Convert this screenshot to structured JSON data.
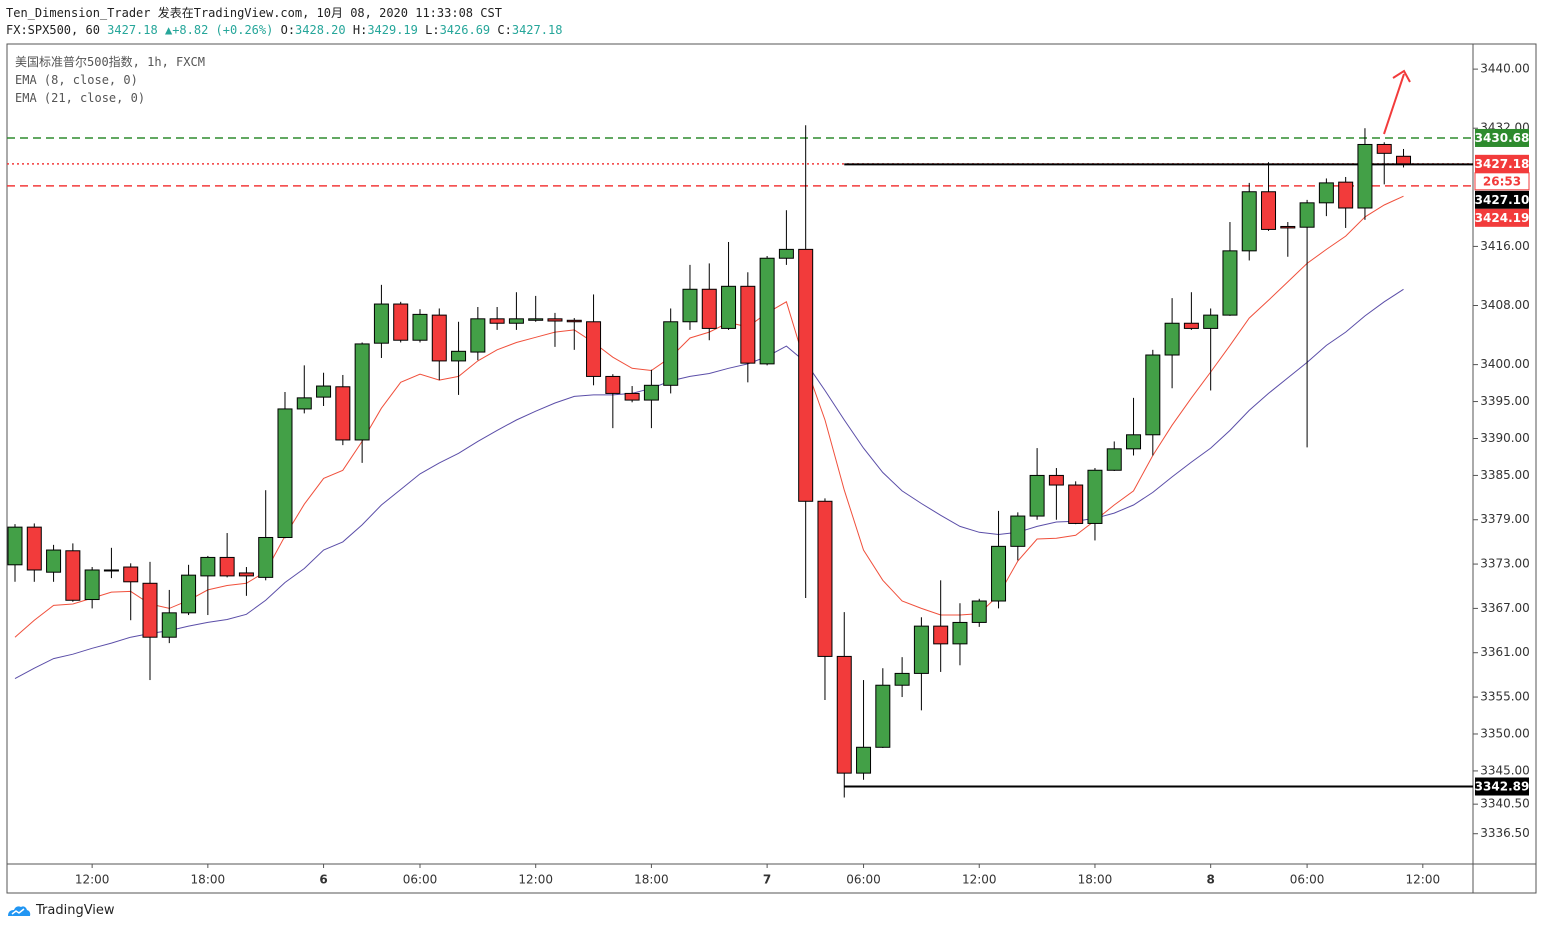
{
  "chart_data": {
    "type": "candlestick",
    "title": "Ten_Dimension_Trader 发表在TradingView.com, 10月 08, 2020 11:33:08 CST",
    "header": {
      "symbol": "FX:SPX500, 60",
      "last": "3427.18",
      "arrow": "▲",
      "change": "+8.82 (+0.26%)",
      "ohlc": [
        {
          "key": "O:",
          "value": "3428.20"
        },
        {
          "key": "H:",
          "value": "3429.19"
        },
        {
          "key": "L:",
          "value": "3426.69"
        },
        {
          "key": "C:",
          "value": "3427.18"
        }
      ]
    },
    "subtitle": "美国标准普尔500指数, 1h, FXCM",
    "categories": [
      null,
      null,
      null,
      null,
      "12:00",
      null,
      null,
      null,
      null,
      null,
      "18:00",
      null,
      null,
      null,
      null,
      null,
      "6",
      null,
      null,
      null,
      null,
      "06:00",
      null,
      null,
      null,
      null,
      null,
      "12:00",
      null,
      null,
      null,
      null,
      null,
      "18:00",
      null,
      null,
      null,
      null,
      null,
      "7",
      null,
      null,
      null,
      null,
      "06:00",
      null,
      null,
      null,
      null,
      null,
      "12:00",
      null,
      null,
      null,
      null,
      null,
      "18:00",
      null,
      null,
      null,
      null,
      null,
      "8",
      null,
      null,
      null,
      null,
      "06:00",
      null,
      null,
      null,
      null,
      null,
      "12:00"
    ],
    "open": [
      3372.9,
      3378.0,
      3371.9,
      3374.8,
      3368.2,
      3372.1,
      3372.6,
      3370.4,
      3363.1,
      3366.4,
      3371.4,
      3373.9,
      3371.8,
      3371.2,
      3376.6,
      3394.0,
      3395.6,
      3397.0,
      3389.8,
      3402.9,
      3408.2,
      3403.3,
      3406.7,
      3400.5,
      3401.7,
      3406.2,
      3405.6,
      3406.0,
      3406.2,
      3406.0,
      3405.8,
      3398.4,
      3396.1,
      3395.2,
      3397.2,
      3405.8,
      3410.2,
      3404.9,
      3410.6,
      3400.1,
      3414.4,
      3415.6,
      3381.5,
      3360.5,
      3344.7,
      3348.2,
      3356.6,
      3358.2,
      3364.6,
      3362.2,
      3365.1,
      3368.0,
      3375.4,
      3379.5,
      3385.0,
      3383.7,
      3378.5,
      3385.7,
      3388.6,
      3390.5,
      3401.3,
      3405.6,
      3404.9,
      3406.7,
      3415.4,
      3423.4,
      3418.7,
      3418.6,
      3421.9,
      3424.7,
      3421.2,
      3429.8,
      3428.2,
      null
    ],
    "high": [
      3378.4,
      3378.5,
      3375.6,
      3375.8,
      3372.6,
      3375.2,
      3373.1,
      3373.3,
      3369.5,
      3372.9,
      3374.1,
      3377.2,
      3372.6,
      3383.0,
      3396.3,
      3399.9,
      3398.9,
      3398.6,
      3403.0,
      3410.8,
      3408.5,
      3407.5,
      3407.6,
      3405.8,
      3407.8,
      3407.8,
      3409.8,
      3409.3,
      3407.0,
      3406.3,
      3409.5,
      3398.7,
      3397.1,
      3399.3,
      3407.6,
      3413.5,
      3413.7,
      3416.6,
      3412.5,
      3414.7,
      3420.9,
      3432.4,
      3381.9,
      3366.5,
      3357.3,
      3358.9,
      3360.4,
      3365.8,
      3370.8,
      3367.7,
      3368.3,
      3380.2,
      3380.0,
      3388.7,
      3386.0,
      3384.2,
      3386.0,
      3389.6,
      3395.5,
      3402.0,
      3409.0,
      3409.8,
      3407.6,
      3419.3,
      3424.6,
      3427.4,
      3419.3,
      3422.3,
      3425.2,
      3425.4,
      3432.0,
      3430.1,
      3429.19,
      null
    ],
    "low": [
      3370.6,
      3370.6,
      3370.6,
      3367.9,
      3367.0,
      3371.1,
      3365.4,
      3357.3,
      3362.3,
      3366.1,
      3366.1,
      3371.2,
      3368.7,
      3370.8,
      3376.5,
      3393.4,
      3394.4,
      3389.1,
      3386.7,
      3400.9,
      3403.0,
      3403.0,
      3397.9,
      3395.9,
      3400.6,
      3404.7,
      3404.7,
      3405.8,
      3402.4,
      3402.0,
      3397.2,
      3391.4,
      3394.9,
      3391.4,
      3396.1,
      3404.7,
      3403.3,
      3404.7,
      3397.6,
      3399.9,
      3413.5,
      3368.4,
      3354.6,
      3341.4,
      3343.8,
      3348.1,
      3355.0,
      3353.2,
      3358.4,
      3359.3,
      3364.5,
      3367.0,
      3373.5,
      3379.0,
      3379.0,
      3378.4,
      3376.2,
      3385.6,
      3387.7,
      3387.7,
      3396.8,
      3404.7,
      3396.5,
      3406.6,
      3414.1,
      3418.1,
      3414.6,
      3388.8,
      3420.1,
      3418.5,
      3419.6,
      3424.4,
      3426.69,
      null
    ],
    "close": [
      3378.0,
      3372.2,
      3374.9,
      3368.1,
      3372.2,
      3372.2,
      3370.6,
      3363.1,
      3366.4,
      3371.5,
      3373.9,
      3371.4,
      3371.4,
      3376.6,
      3394.0,
      3395.5,
      3397.1,
      3389.8,
      3402.8,
      3408.2,
      3403.3,
      3406.8,
      3400.5,
      3401.8,
      3406.2,
      3405.6,
      3406.2,
      3406.2,
      3405.9,
      3405.8,
      3398.4,
      3396.1,
      3395.2,
      3397.2,
      3405.8,
      3410.2,
      3404.9,
      3410.6,
      3400.2,
      3414.4,
      3415.6,
      3381.5,
      3360.5,
      3344.7,
      3348.2,
      3356.6,
      3358.2,
      3364.6,
      3362.2,
      3365.1,
      3368.0,
      3375.4,
      3379.5,
      3385.0,
      3383.7,
      3378.5,
      3385.7,
      3388.6,
      3390.5,
      3401.3,
      3405.6,
      3404.9,
      3406.7,
      3415.4,
      3423.4,
      3418.3,
      3418.5,
      3421.9,
      3424.6,
      3421.2,
      3429.8,
      3428.6,
      3427.18,
      null
    ],
    "up_color": "#43a047",
    "down_color": "#f23b3b",
    "series": [
      {
        "name": "EMA (8, close, 0)",
        "color": "#f0503c",
        "values": [
          3363.1,
          3365.4,
          3367.4,
          3367.6,
          3368.4,
          3369.2,
          3369.3,
          3367.6,
          3367.0,
          3368.1,
          3369.5,
          3370.1,
          3370.4,
          3372.0,
          3376.8,
          3381.1,
          3384.6,
          3385.7,
          3389.6,
          3394.1,
          3397.6,
          3398.7,
          3397.9,
          3398.4,
          3400.5,
          3402.0,
          3403.0,
          3403.7,
          3404.4,
          3404.7,
          3403.0,
          3401.0,
          3399.5,
          3399.2,
          3401.0,
          3403.6,
          3404.4,
          3405.7,
          3405.1,
          3407.0,
          3408.5,
          3399.9,
          3392.5,
          3383.0,
          3374.9,
          3370.8,
          3368.0,
          3367.0,
          3366.1,
          3366.1,
          3366.3,
          3368.8,
          3373.4,
          3376.4,
          3376.5,
          3376.9,
          3378.9,
          3381.0,
          3382.9,
          3387.7,
          3391.8,
          3395.5,
          3399.0,
          3402.6,
          3406.3,
          3408.7,
          3411.2,
          3413.7,
          3415.6,
          3417.4,
          3420.0,
          3421.6,
          3422.8,
          null
        ]
      },
      {
        "name": "EMA (21, close, 0)",
        "color": "#5b4ea8",
        "values": [
          3357.5,
          3358.9,
          3360.2,
          3360.8,
          3361.6,
          3362.3,
          3363.1,
          3363.6,
          3364.0,
          3364.6,
          3365.1,
          3365.5,
          3366.2,
          3368.1,
          3370.5,
          3372.4,
          3374.9,
          3376.0,
          3378.3,
          3381.0,
          3383.1,
          3385.2,
          3386.7,
          3388.0,
          3389.6,
          3391.1,
          3392.5,
          3393.7,
          3394.8,
          3395.7,
          3395.9,
          3395.9,
          3396.1,
          3396.8,
          3397.8,
          3398.4,
          3398.8,
          3399.5,
          3400.1,
          3401.1,
          3402.5,
          3400.3,
          3396.5,
          3392.5,
          3388.7,
          3385.4,
          3382.9,
          3381.2,
          3379.6,
          3378.1,
          3377.3,
          3377.0,
          3377.3,
          3378.1,
          3378.7,
          3378.8,
          3379.2,
          3379.9,
          3381.0,
          3382.7,
          3384.8,
          3386.8,
          3388.7,
          3391.1,
          3393.8,
          3396.1,
          3398.2,
          3400.3,
          3402.6,
          3404.4,
          3406.6,
          3408.5,
          3410.2,
          null
        ]
      }
    ],
    "ylim": [
      3332.4,
      3443.4
    ],
    "yticks": [
      {
        "value": 3440,
        "label": "3440.00"
      },
      {
        "value": 3432,
        "label": "3432.00"
      },
      {
        "value": 3416,
        "label": "3416.00"
      },
      {
        "value": 3408,
        "label": "3408.00"
      },
      {
        "value": 3400,
        "label": "3400.00"
      },
      {
        "value": 3395,
        "label": "3395.00"
      },
      {
        "value": 3390,
        "label": "3390.00"
      },
      {
        "value": 3385,
        "label": "3385.00"
      },
      {
        "value": 3379,
        "label": "3379.00"
      },
      {
        "value": 3373,
        "label": "3373.00"
      },
      {
        "value": 3367,
        "label": "3367.00"
      },
      {
        "value": 3361,
        "label": "3361.00"
      },
      {
        "value": 3355,
        "label": "3355.00"
      },
      {
        "value": 3350,
        "label": "3350.00"
      },
      {
        "value": 3345,
        "label": "3345.00"
      },
      {
        "value": 3340.5,
        "label": "3340.50"
      },
      {
        "value": 3336.5,
        "label": "3336.50"
      }
    ],
    "hlines": [
      {
        "value": 3430.68,
        "color": "#2e8b2e",
        "style": "dashed"
      },
      {
        "value": 3427.18,
        "color": "#f23b3b",
        "style": "dotted"
      },
      {
        "value": 3424.19,
        "color": "#f23b3b",
        "style": "dashed"
      },
      {
        "value": 3427.1,
        "label": "3427.10",
        "color": "#000000",
        "style": "solid"
      },
      {
        "value": 3342.89,
        "color": "#000000",
        "style": "solid"
      }
    ],
    "countdown": "26:53",
    "grid": false,
    "brand": "TradingView"
  }
}
